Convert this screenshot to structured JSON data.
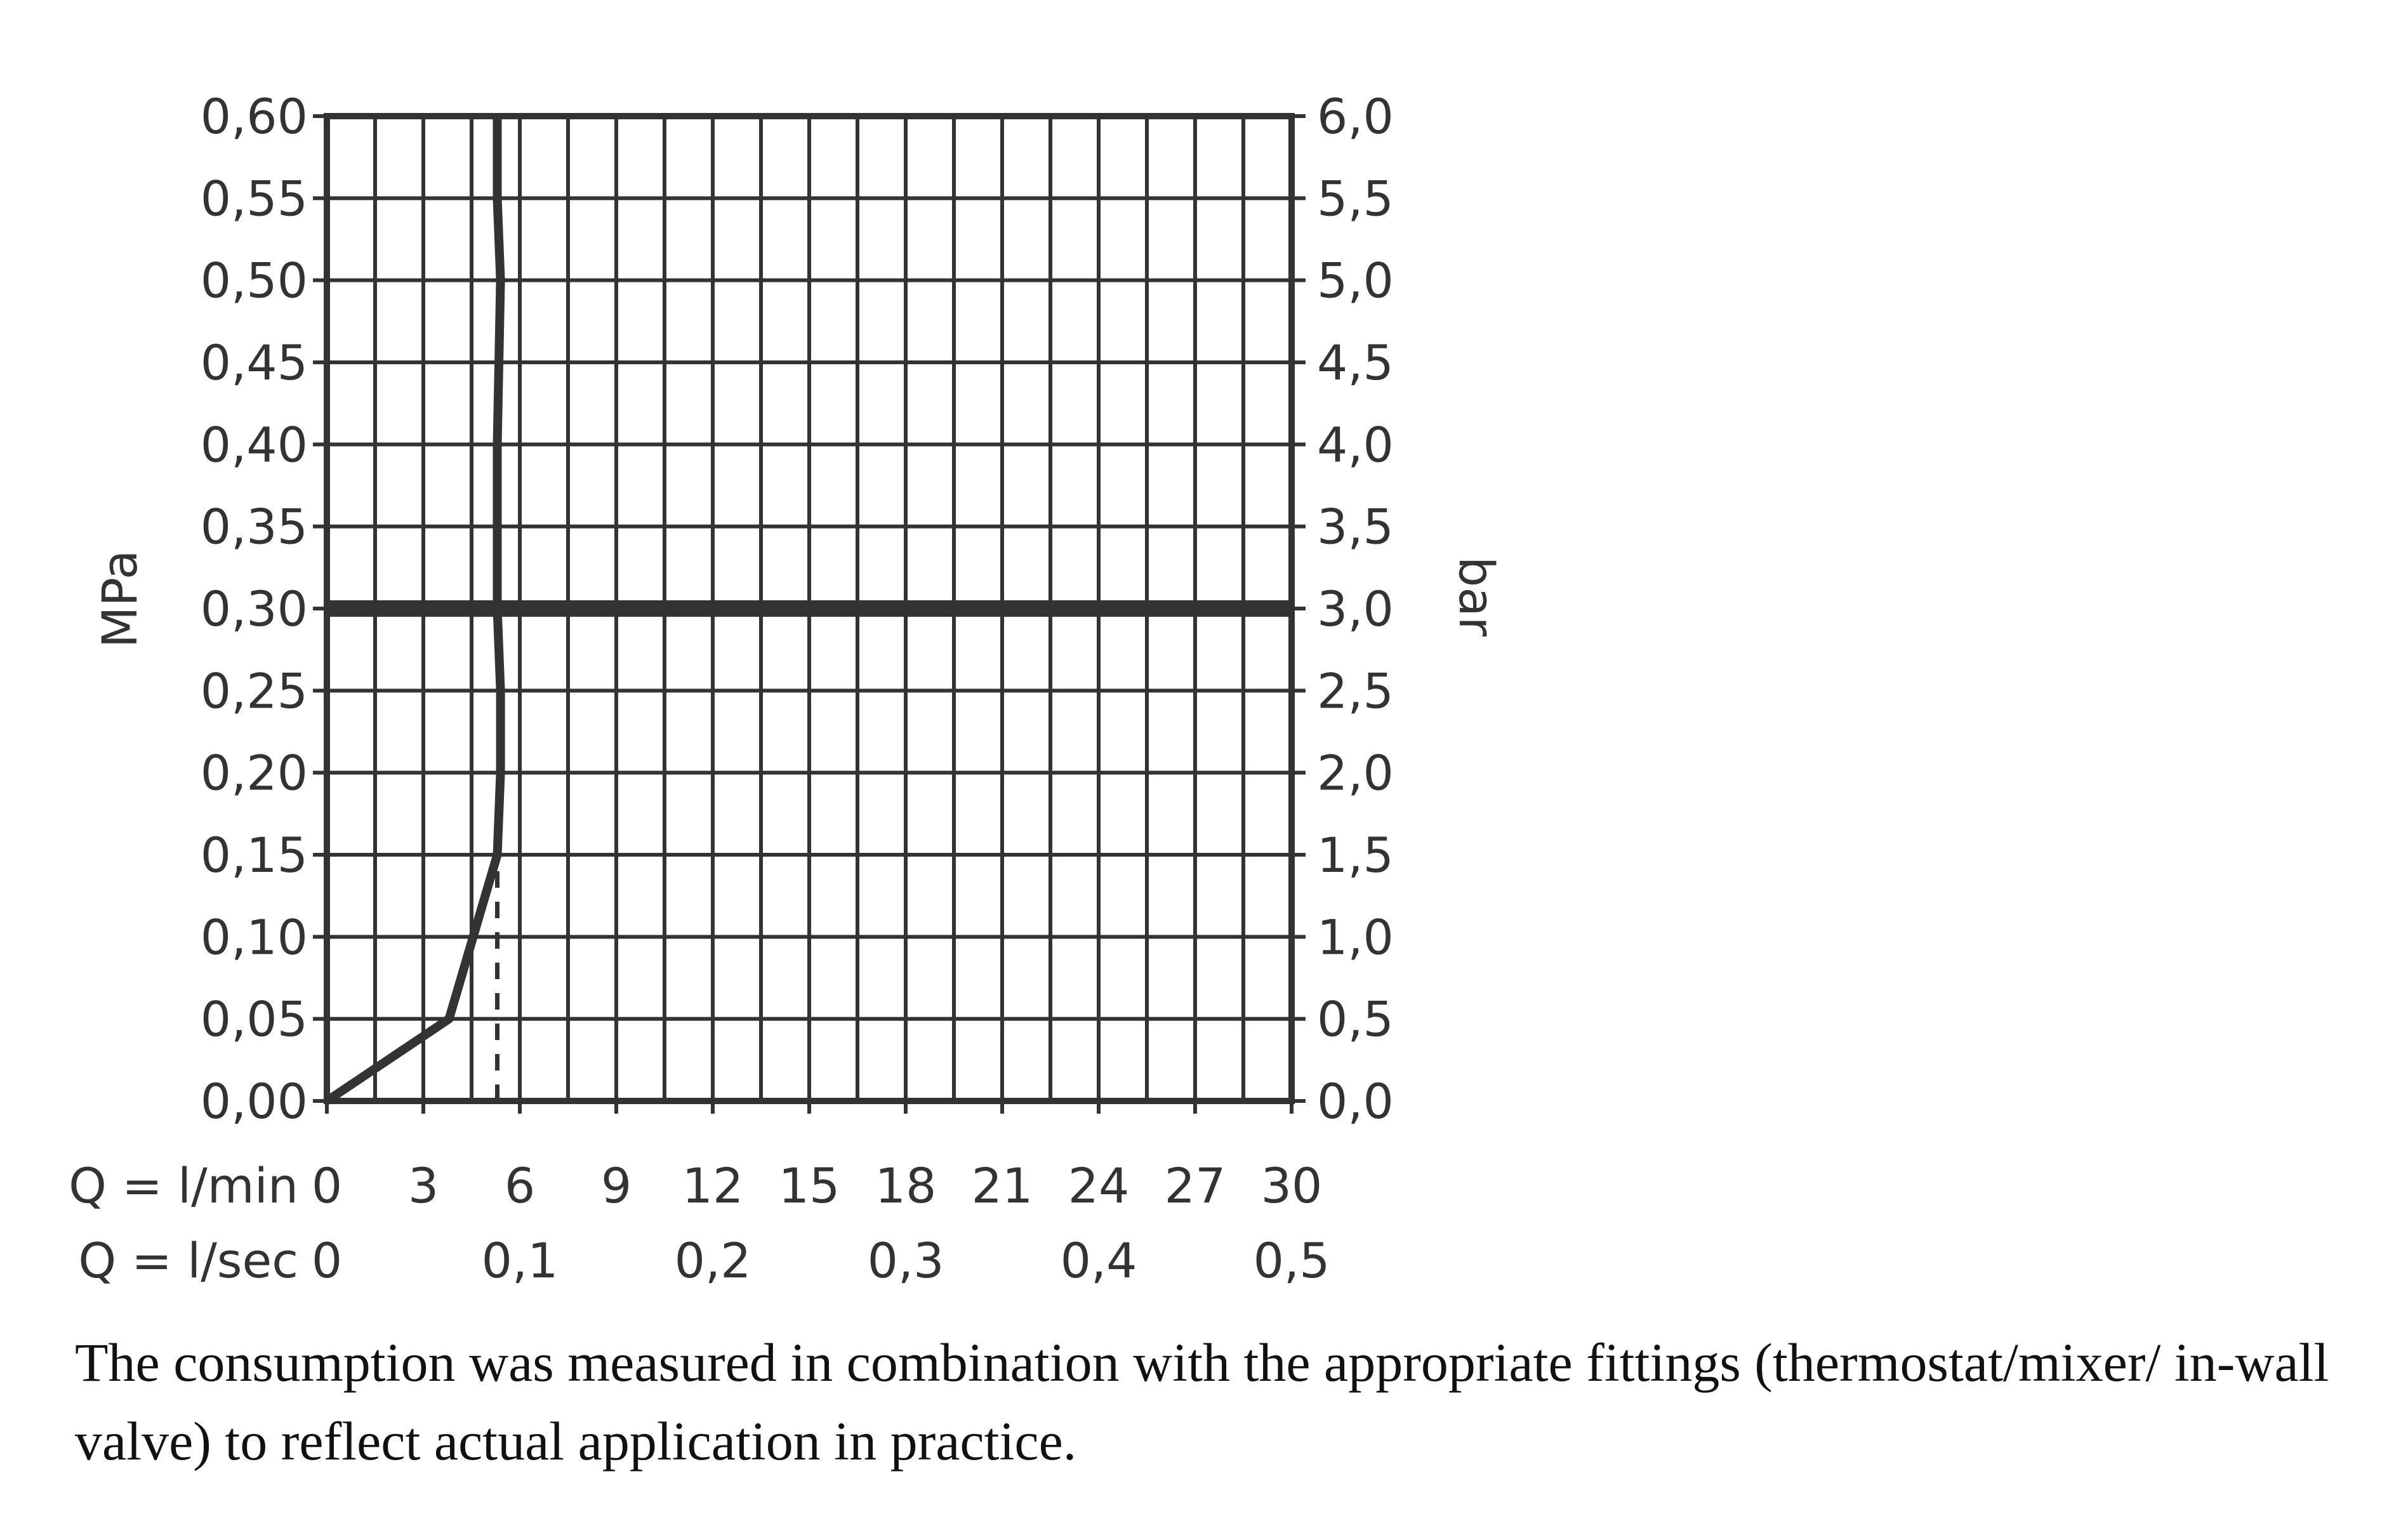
{
  "chart_data": {
    "type": "line",
    "title": "",
    "left_axis": {
      "unit": "MPa",
      "ylim": [
        0,
        0.6
      ],
      "tick_values": [
        0,
        0.05,
        0.1,
        0.15,
        0.2,
        0.25,
        0.3,
        0.35,
        0.4,
        0.45,
        0.5,
        0.55,
        0.6
      ],
      "tick_labels": [
        "0,00",
        "0,05",
        "0,10",
        "0,15",
        "0,20",
        "0,25",
        "0,30",
        "0,35",
        "0,40",
        "0,45",
        "0,50",
        "0,55",
        "0,60"
      ]
    },
    "right_axis": {
      "unit": "bar",
      "tick_labels": [
        "0,0",
        "0,5",
        "1,0",
        "1,5",
        "2,0",
        "2,5",
        "3,0",
        "3,5",
        "4,0",
        "4,5",
        "5,0",
        "5,5",
        "6,0"
      ]
    },
    "x_axis_lmin": {
      "label": "Q = l/min",
      "xlim": [
        0,
        30
      ],
      "tick_values": [
        0,
        3,
        6,
        9,
        12,
        15,
        18,
        21,
        24,
        27,
        30
      ],
      "tick_labels": [
        "0",
        "3",
        "6",
        "9",
        "12",
        "15",
        "18",
        "21",
        "24",
        "27",
        "30"
      ]
    },
    "x_axis_lsec": {
      "label": "Q = l/sec",
      "tick_values": [
        0,
        0.1,
        0.2,
        0.3,
        0.4,
        0.5
      ],
      "tick_labels": [
        "0",
        "0,1",
        "0,2",
        "0,3",
        "0,4",
        "0,5"
      ]
    },
    "grid": true,
    "series": [
      {
        "style": "solid",
        "points": [
          [
            0,
            0
          ],
          [
            3.8,
            0.05
          ],
          [
            5.3,
            0.15
          ],
          [
            5.4,
            0.2
          ],
          [
            5.4,
            0.25
          ],
          [
            5.3,
            0.3
          ],
          [
            5.3,
            0.35
          ],
          [
            5.3,
            0.4
          ],
          [
            5.4,
            0.5
          ],
          [
            5.3,
            0.55
          ],
          [
            5.3,
            0.6
          ]
        ]
      },
      {
        "style": "dashed",
        "points": [
          [
            5.3,
            0
          ],
          [
            5.3,
            0.15
          ]
        ]
      }
    ],
    "reference_line": {
      "y": 0.3
    }
  },
  "caption": "The consumption was measured in combination with the appropriate fittings (thermostat/mixer/ in-wall valve) to reflect actual application in practice."
}
